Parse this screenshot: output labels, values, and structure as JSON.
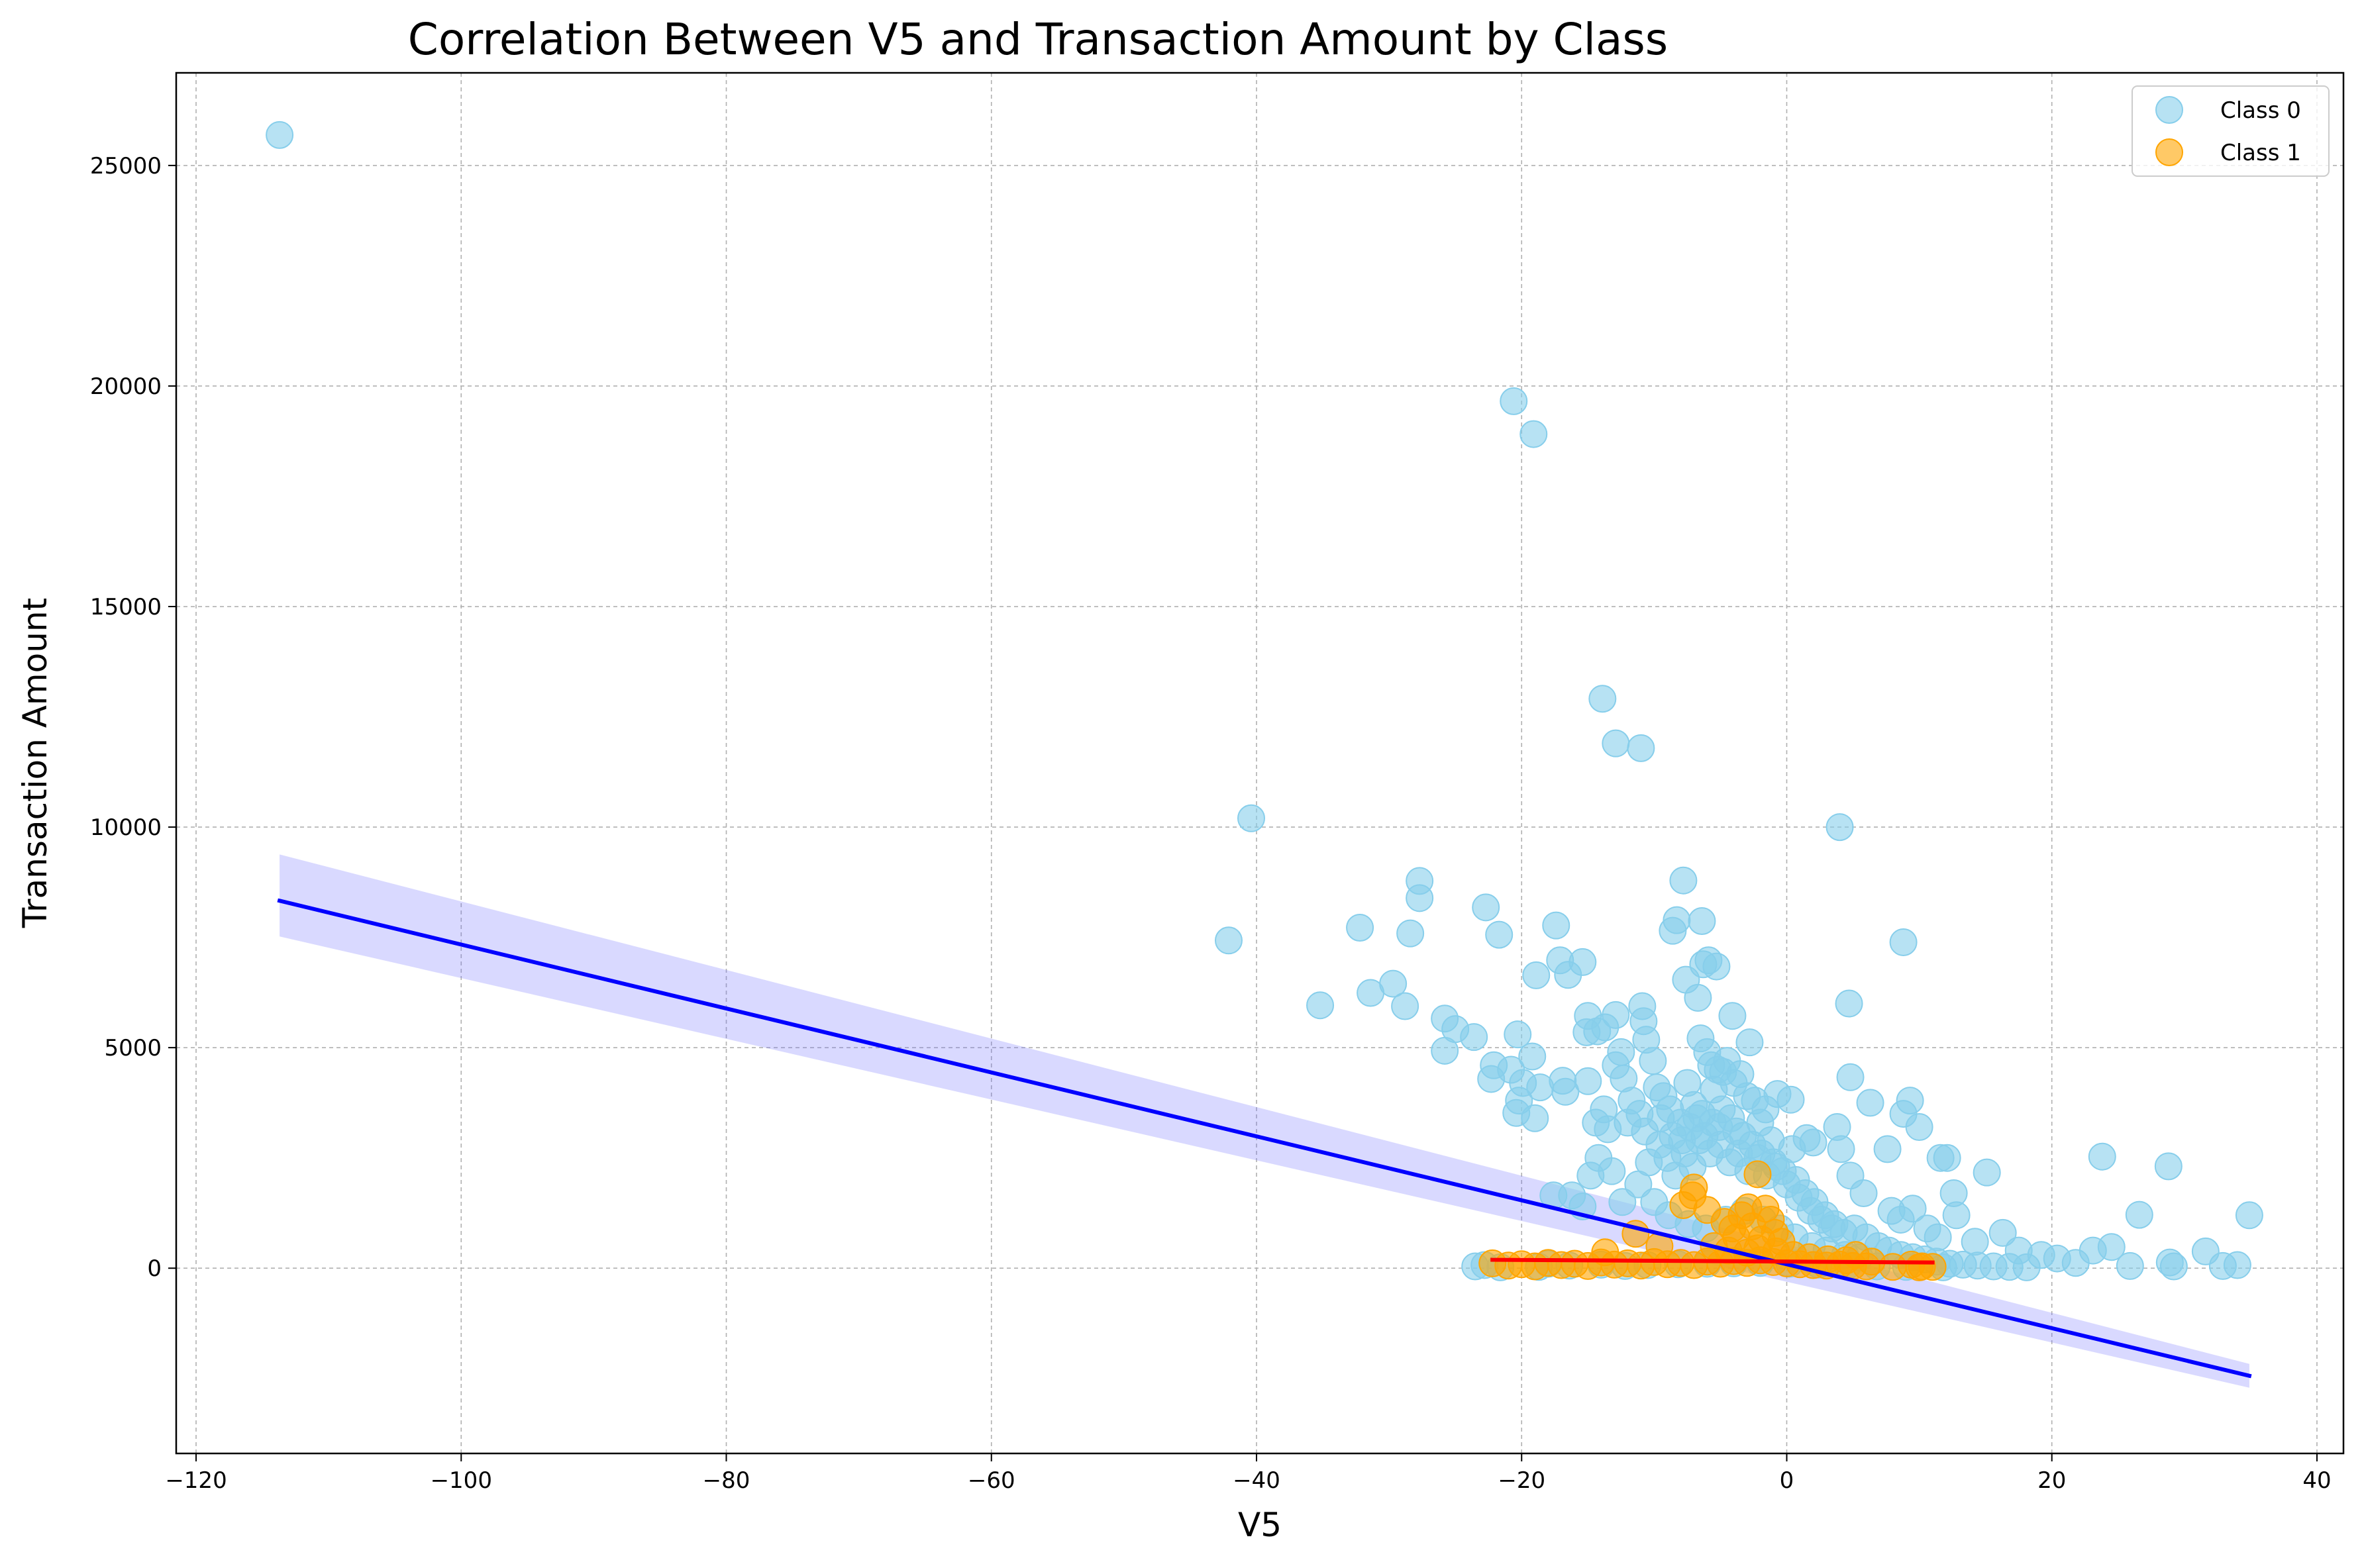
{
  "chart_data": {
    "type": "scatter",
    "title": "Correlation Between V5 and Transaction Amount by Class",
    "xlabel": "V5",
    "ylabel": "Transaction Amount",
    "xlim": [
      -121.5,
      42
    ],
    "ylim": [
      -4200,
      27100
    ],
    "xticks": [
      -120,
      -100,
      -80,
      -60,
      -40,
      -20,
      0,
      20,
      40
    ],
    "yticks": [
      0,
      5000,
      10000,
      15000,
      20000,
      25000
    ],
    "xtick_labels": [
      "−120",
      "−100",
      "−80",
      "−60",
      "−40",
      "−20",
      "0",
      "20",
      "40"
    ],
    "ytick_labels": [
      "0",
      "5000",
      "10000",
      "15000",
      "20000",
      "25000"
    ],
    "grid": true,
    "legend_position": "top-right",
    "series": [
      {
        "name": "Class 0",
        "color": "#87CEEB",
        "points": [
          [
            -113.7,
            25691
          ],
          [
            -20.6,
            19656
          ],
          [
            -19.1,
            18910
          ],
          [
            -13.9,
            12910
          ],
          [
            -12.9,
            11898
          ],
          [
            -11.0,
            11790
          ],
          [
            -40.4,
            10200
          ],
          [
            4.0,
            10000
          ],
          [
            -42.1,
            7430
          ],
          [
            -35.2,
            5960
          ],
          [
            -32.2,
            7720
          ],
          [
            -31.4,
            6240
          ],
          [
            -29.7,
            6450
          ],
          [
            -28.4,
            7590
          ],
          [
            -28.8,
            5940
          ],
          [
            -27.7,
            8780
          ],
          [
            -27.7,
            8390
          ],
          [
            -25.8,
            5660
          ],
          [
            -25.8,
            4930
          ],
          [
            -25.0,
            5420
          ],
          [
            -23.6,
            5240
          ],
          [
            -22.7,
            8180
          ],
          [
            -21.7,
            7560
          ],
          [
            -22.1,
            4600
          ],
          [
            -22.3,
            4290
          ],
          [
            -20.8,
            4500
          ],
          [
            -20.4,
            3520
          ],
          [
            -20.2,
            3800
          ],
          [
            -19.9,
            4200
          ],
          [
            -19.2,
            4800
          ],
          [
            -19.0,
            3400
          ],
          [
            -18.6,
            4100
          ],
          [
            -20.3,
            5300
          ],
          [
            -18.9,
            6640
          ],
          [
            -17.4,
            7770
          ],
          [
            -17.1,
            6980
          ],
          [
            -16.5,
            6650
          ],
          [
            -15.4,
            6940
          ],
          [
            -15.0,
            5720
          ],
          [
            -14.3,
            5370
          ],
          [
            -15.1,
            5350
          ],
          [
            -13.7,
            5460
          ],
          [
            -12.9,
            5740
          ],
          [
            -10.9,
            5940
          ],
          [
            -10.8,
            5600
          ],
          [
            -10.6,
            5180
          ],
          [
            -16.7,
            4000
          ],
          [
            -16.9,
            4250
          ],
          [
            -15.0,
            4240
          ],
          [
            -14.4,
            3300
          ],
          [
            -13.5,
            3150
          ],
          [
            -12.9,
            4600
          ],
          [
            -12.5,
            4900
          ],
          [
            -12.3,
            4300
          ],
          [
            -11.7,
            3800
          ],
          [
            -11.1,
            3500
          ],
          [
            -10.1,
            4700
          ],
          [
            -9.8,
            4100
          ],
          [
            -9.3,
            3900
          ],
          [
            -8.8,
            3600
          ],
          [
            -8.3,
            7890
          ],
          [
            -8.6,
            7650
          ],
          [
            -7.8,
            8790
          ],
          [
            -6.4,
            7870
          ],
          [
            -7.6,
            6540
          ],
          [
            -6.7,
            6130
          ],
          [
            -6.3,
            6890
          ],
          [
            -5.9,
            6980
          ],
          [
            -5.3,
            6840
          ],
          [
            -4.1,
            5720
          ],
          [
            -6.5,
            5210
          ],
          [
            -6.0,
            4900
          ],
          [
            -5.7,
            4600
          ],
          [
            -5.2,
            4500
          ],
          [
            -4.5,
            4700
          ],
          [
            -4.0,
            4200
          ],
          [
            -3.5,
            4400
          ],
          [
            -3.0,
            3900
          ],
          [
            -2.4,
            3800
          ],
          [
            -1.6,
            3600
          ],
          [
            -0.7,
            3950
          ],
          [
            0.3,
            3820
          ],
          [
            -2.8,
            5120
          ],
          [
            -4.8,
            4450
          ],
          [
            -5.5,
            4050
          ],
          [
            -7.5,
            4200
          ],
          [
            -8.0,
            3300
          ],
          [
            -7.0,
            3700
          ],
          [
            -6.4,
            3500
          ],
          [
            -5.1,
            3200
          ],
          [
            -3.8,
            3100
          ],
          [
            -2.0,
            3300
          ],
          [
            -1.2,
            2900
          ],
          [
            0.4,
            2700
          ],
          [
            1.5,
            2950
          ],
          [
            2.0,
            2850
          ],
          [
            3.8,
            3200
          ],
          [
            4.1,
            2700
          ],
          [
            4.8,
            2100
          ],
          [
            5.8,
            1700
          ],
          [
            4.8,
            4330
          ],
          [
            4.7,
            6000
          ],
          [
            6.3,
            3750
          ],
          [
            9.3,
            3800
          ],
          [
            8.8,
            3500
          ],
          [
            10.0,
            3200
          ],
          [
            8.8,
            7390
          ],
          [
            7.6,
            2700
          ],
          [
            11.6,
            2500
          ],
          [
            12.1,
            2500
          ],
          [
            15.1,
            2170
          ],
          [
            12.6,
            1700
          ],
          [
            9.5,
            1350
          ],
          [
            8.6,
            1100
          ],
          [
            7.9,
            1300
          ],
          [
            10.6,
            900
          ],
          [
            12.8,
            1200
          ],
          [
            11.4,
            700
          ],
          [
            14.2,
            600
          ],
          [
            16.3,
            800
          ],
          [
            17.5,
            400
          ],
          [
            19.2,
            300
          ],
          [
            20.4,
            220
          ],
          [
            21.8,
            120
          ],
          [
            23.1,
            400
          ],
          [
            23.8,
            2530
          ],
          [
            24.5,
            480
          ],
          [
            25.9,
            50
          ],
          [
            26.6,
            1210
          ],
          [
            28.8,
            2310
          ],
          [
            28.9,
            130
          ],
          [
            29.2,
            40
          ],
          [
            31.6,
            380
          ],
          [
            32.9,
            50
          ],
          [
            34.0,
            70
          ],
          [
            34.9,
            1200
          ],
          [
            -23.5,
            40
          ],
          [
            -22.8,
            70
          ],
          [
            -21.6,
            20
          ],
          [
            -18.7,
            30
          ],
          [
            -17.6,
            1650
          ],
          [
            -16.2,
            1650
          ],
          [
            -15.4,
            1400
          ],
          [
            -14.8,
            2100
          ],
          [
            -14.2,
            2500
          ],
          [
            -13.2,
            2200
          ],
          [
            -12.4,
            1500
          ],
          [
            -11.2,
            1900
          ],
          [
            -10.4,
            2400
          ],
          [
            -9.6,
            2800
          ],
          [
            -9.0,
            2500
          ],
          [
            -8.4,
            2100
          ],
          [
            -7.7,
            2600
          ],
          [
            -7.1,
            2300
          ],
          [
            -6.6,
            2900
          ],
          [
            -5.8,
            2600
          ],
          [
            -5.0,
            2800
          ],
          [
            -4.3,
            2400
          ],
          [
            -3.6,
            2600
          ],
          [
            -2.9,
            2200
          ],
          [
            -2.2,
            2500
          ],
          [
            -1.5,
            2100
          ],
          [
            -0.8,
            2300
          ],
          [
            0.0,
            1900
          ],
          [
            0.7,
            2000
          ],
          [
            1.4,
            1700
          ],
          [
            2.1,
            1500
          ],
          [
            2.9,
            1200
          ],
          [
            3.6,
            1000
          ],
          [
            4.3,
            800
          ],
          [
            5.1,
            900
          ],
          [
            6.0,
            700
          ],
          [
            6.9,
            500
          ],
          [
            7.7,
            400
          ],
          [
            8.6,
            300
          ],
          [
            9.5,
            250
          ],
          [
            10.4,
            200
          ],
          [
            11.3,
            150
          ],
          [
            12.3,
            100
          ],
          [
            13.3,
            80
          ],
          [
            14.4,
            60
          ],
          [
            15.6,
            40
          ],
          [
            16.8,
            30
          ],
          [
            18.1,
            20
          ],
          [
            -13.8,
            3600
          ],
          [
            -12.0,
            3300
          ],
          [
            -10.7,
            3100
          ],
          [
            -9.5,
            3400
          ],
          [
            -8.6,
            3000
          ],
          [
            -7.9,
            2900
          ],
          [
            -7.3,
            3200
          ],
          [
            -6.8,
            3400
          ],
          [
            -6.2,
            3000
          ],
          [
            -5.6,
            3300
          ],
          [
            -4.9,
            3600
          ],
          [
            -4.2,
            3400
          ],
          [
            -3.3,
            3000
          ],
          [
            -2.6,
            2800
          ],
          [
            -1.9,
            2600
          ],
          [
            -1.0,
            2400
          ],
          [
            -0.3,
            2200
          ],
          [
            0.9,
            1600
          ],
          [
            1.8,
            1300
          ],
          [
            2.6,
            1100
          ],
          [
            3.4,
            900
          ],
          [
            -10.0,
            1500
          ],
          [
            -8.9,
            1200
          ],
          [
            -7.4,
            1000
          ],
          [
            -6.1,
            900
          ],
          [
            -4.6,
            1100
          ],
          [
            -3.2,
            1300
          ],
          [
            -1.8,
            1100
          ],
          [
            -0.5,
            900
          ],
          [
            0.6,
            700
          ],
          [
            1.9,
            500
          ],
          [
            3.0,
            400
          ],
          [
            4.4,
            300
          ],
          [
            5.5,
            250
          ],
          [
            -18.0,
            100
          ],
          [
            -16.4,
            60
          ],
          [
            -14.0,
            80
          ],
          [
            -12.2,
            50
          ],
          [
            -10.5,
            70
          ],
          [
            -8.2,
            90
          ],
          [
            -6.0,
            100
          ],
          [
            -4.0,
            110
          ],
          [
            -2.0,
            120
          ],
          [
            0.2,
            100
          ],
          [
            2.4,
            80
          ],
          [
            4.6,
            60
          ],
          [
            6.8,
            40
          ],
          [
            9.0,
            30
          ],
          [
            11.8,
            20
          ]
        ]
      },
      {
        "name": "Class 1",
        "color": "#FFA500",
        "points": [
          [
            -22.2,
            110
          ],
          [
            -21.0,
            60
          ],
          [
            -20.0,
            90
          ],
          [
            -19.0,
            40
          ],
          [
            -18.0,
            120
          ],
          [
            -17.0,
            70
          ],
          [
            -16.0,
            100
          ],
          [
            -15.0,
            50
          ],
          [
            -14.0,
            130
          ],
          [
            -13.0,
            80
          ],
          [
            -12.0,
            110
          ],
          [
            -11.0,
            60
          ],
          [
            -10.0,
            140
          ],
          [
            -9.0,
            90
          ],
          [
            -8.0,
            120
          ],
          [
            -7.0,
            70
          ],
          [
            -6.0,
            150
          ],
          [
            -5.0,
            100
          ],
          [
            -4.0,
            160
          ],
          [
            -3.0,
            120
          ],
          [
            -2.0,
            180
          ],
          [
            -1.0,
            140
          ],
          [
            0.0,
            110
          ],
          [
            1.0,
            90
          ],
          [
            2.0,
            70
          ],
          [
            3.0,
            60
          ],
          [
            4.0,
            80
          ],
          [
            5.0,
            50
          ],
          [
            6.0,
            40
          ],
          [
            8.0,
            30
          ],
          [
            10.0,
            20
          ],
          [
            11.0,
            30
          ],
          [
            -13.7,
            360
          ],
          [
            -11.4,
            780
          ],
          [
            -9.6,
            500
          ],
          [
            -7.0,
            1830
          ],
          [
            -7.1,
            1650
          ],
          [
            -7.8,
            1430
          ],
          [
            -6.0,
            1320
          ],
          [
            -4.7,
            1050
          ],
          [
            -4.1,
            900
          ],
          [
            -3.4,
            1200
          ],
          [
            -2.9,
            1380
          ],
          [
            -2.2,
            2130
          ],
          [
            -1.6,
            1350
          ],
          [
            -1.2,
            1100
          ],
          [
            -0.9,
            800
          ],
          [
            -0.4,
            600
          ],
          [
            -3.8,
            700
          ],
          [
            -2.6,
            950
          ],
          [
            -1.9,
            650
          ],
          [
            -5.5,
            500
          ],
          [
            -4.4,
            400
          ],
          [
            -3.0,
            350
          ],
          [
            -2.2,
            450
          ],
          [
            -0.8,
            380
          ],
          [
            0.5,
            300
          ],
          [
            1.7,
            250
          ],
          [
            3.1,
            200
          ],
          [
            4.5,
            180
          ],
          [
            5.2,
            300
          ],
          [
            6.4,
            150
          ],
          [
            9.4,
            80
          ],
          [
            10.2,
            40
          ]
        ]
      }
    ],
    "regression_lines": [
      {
        "series": "Class 0",
        "color": "#0000FF",
        "band_color": "#6666FF",
        "x": [
          -113.7,
          34.9
        ],
        "y": [
          8330,
          -2440
        ],
        "band_upper": [
          9380,
          -2170
        ],
        "band_lower": [
          7520,
          -2710
        ]
      },
      {
        "series": "Class 1",
        "color": "#FF0000",
        "x": [
          -22.2,
          11.0
        ],
        "y": [
          190,
          130
        ]
      }
    ]
  }
}
